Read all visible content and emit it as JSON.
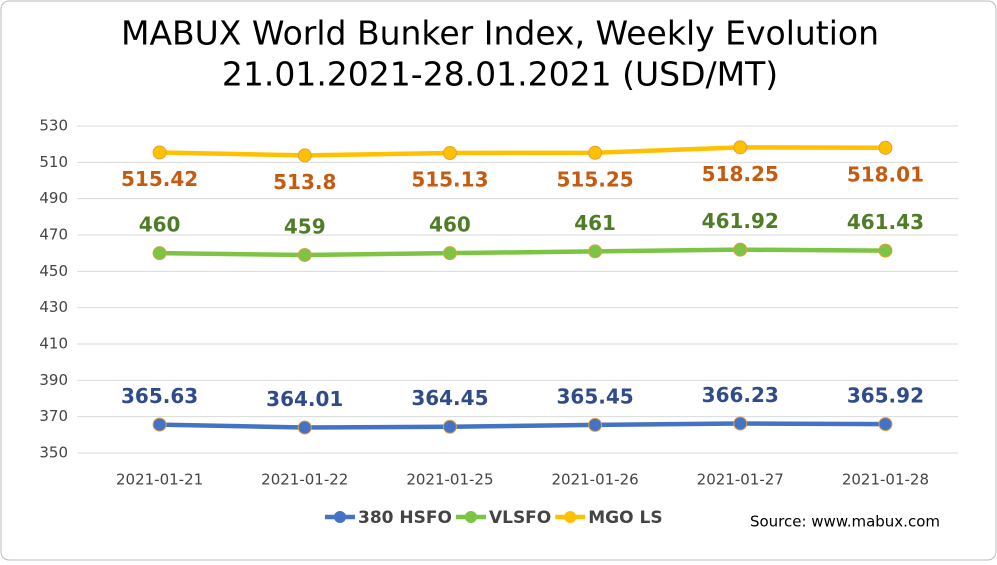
{
  "chart_data": {
    "type": "line",
    "title": [
      "MABUX World Bunker Index, Weekly Evolution",
      "21.01.2021-28.01.2021 (USD/MT)"
    ],
    "categories": [
      "2021-01-21",
      "2021-01-22",
      "2021-01-25",
      "2021-01-26",
      "2021-01-27",
      "2021-01-28"
    ],
    "series": [
      {
        "name": "380 HSFO",
        "color": "#4472c4",
        "label_color": "#2f4b8c",
        "label_position": "above",
        "values": [
          365.63,
          364.01,
          364.45,
          365.45,
          366.23,
          365.92
        ]
      },
      {
        "name": "VLSFO",
        "color": "#7cc443",
        "label_color": "#4f7d27",
        "label_position": "above",
        "values": [
          460,
          459,
          460,
          461,
          461.92,
          461.43
        ]
      },
      {
        "name": "MGO LS",
        "color": "#ffc000",
        "label_color": "#c55a11",
        "label_position": "below",
        "values": [
          515.42,
          513.8,
          515.13,
          515.25,
          518.25,
          518.01
        ]
      }
    ],
    "ylim": [
      350,
      530
    ],
    "yticks": [
      350,
      370,
      390,
      410,
      430,
      450,
      470,
      490,
      510,
      530
    ],
    "grid": true,
    "legend": "bottom",
    "source": "Source: www.mabux.com"
  }
}
